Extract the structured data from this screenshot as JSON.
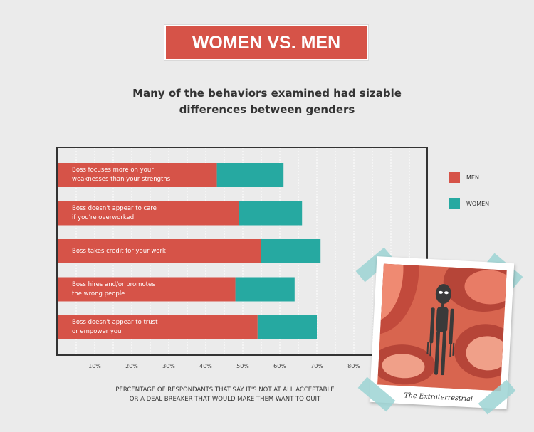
{
  "header": {
    "title": "WOMEN VS. MEN",
    "subtitle_line1": "Many of the behaviors examined had sizable",
    "subtitle_line2": "differences between genders"
  },
  "colors": {
    "men": "#d65348",
    "women": "#26a9a1",
    "title_bg": "#d65348",
    "background": "#ebebeb"
  },
  "legend": {
    "men": "MEN",
    "women": "WOMEN"
  },
  "caption": {
    "line1": "PERCENTAGE OF RESPONDANTS THAT SAY IT'S NOT AT ALL ACCEPTABLE",
    "line2": "OR A DEAL BREAKER THAT WOULD MAKE THEM WANT TO QUIT"
  },
  "polaroid": {
    "caption": "The Extraterrestrial",
    "icon": "alien-illustration"
  },
  "chart_data": {
    "type": "bar",
    "orientation": "horizontal",
    "stacked": true,
    "categories": [
      "Boss focuses more on your\nweaknesses than your strengths",
      "Boss doesn't appear to care\nif you're overworked",
      "Boss takes credit for your work",
      "Boss hires and/or promotes\nthe wrong people",
      "Boss doesn't appear to trust\nor empower you"
    ],
    "series": [
      {
        "name": "MEN",
        "values": [
          43,
          49,
          55,
          48,
          54
        ]
      },
      {
        "name": "WOMEN",
        "values": [
          18,
          17,
          16,
          16,
          16
        ]
      }
    ],
    "xlim": [
      0,
      100
    ],
    "ticks": [
      "10%",
      "20%",
      "30%",
      "40%",
      "50%",
      "60%",
      "70%",
      "80%"
    ],
    "tick_values": [
      10,
      20,
      30,
      40,
      50,
      60,
      70,
      80
    ],
    "grid": true,
    "legend_position": "right"
  }
}
